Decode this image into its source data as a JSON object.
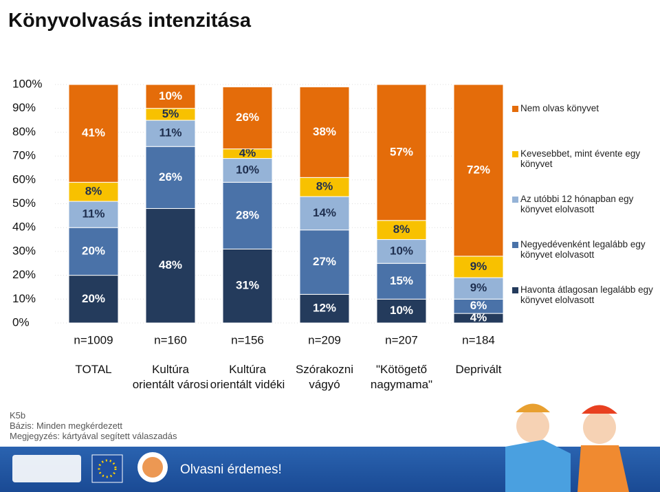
{
  "title": "Könyvolvasás intenzitása",
  "chart_data": {
    "type": "stacked-bar",
    "categories": [
      "TOTAL",
      "Kultúra orientált városi",
      "Kultúra orientált vidéki",
      "Szórakozni vágyó",
      "\"Kötögető nagymama\"",
      "Deprivált"
    ],
    "sample_sizes": [
      "n=1009",
      "n=160",
      "n=156",
      "n=209",
      "n=207",
      "n=184"
    ],
    "series": [
      {
        "name": "Havonta átlagosan legalább egy könyvet elolvasott",
        "color": "#243b5c",
        "values": [
          20,
          48,
          31,
          12,
          10,
          4
        ],
        "value_labels": [
          "20%",
          "48%",
          "31%",
          "12%",
          "10%",
          "4%"
        ]
      },
      {
        "name": "Negyedévenként legalább egy könyvet elolvasott",
        "color": "#4a72a8",
        "values": [
          20,
          26,
          28,
          27,
          15,
          6
        ],
        "value_labels": [
          "20%",
          "26%",
          "28%",
          "27%",
          "15%",
          "6%"
        ]
      },
      {
        "name": "Az utóbbi 12 hónapban egy könyvet elolvasott",
        "color": "#95b3d7",
        "values": [
          11,
          11,
          10,
          14,
          10,
          9
        ],
        "value_labels": [
          "11%",
          "11%",
          "10%",
          "14%",
          "10%",
          "9%"
        ]
      },
      {
        "name": "Kevesebbet, mint évente egy könyvet",
        "color": "#f8c100",
        "values": [
          8,
          5,
          4,
          8,
          8,
          9
        ],
        "value_labels": [
          "8%",
          "5%",
          "4%",
          "8%",
          "8%",
          "9%"
        ]
      },
      {
        "name": "Nem olvas könyvet",
        "color": "#e46c0a",
        "values": [
          41,
          10,
          26,
          38,
          57,
          72
        ],
        "value_labels": [
          "41%",
          "10%",
          "26%",
          "38%",
          "57%",
          "72%"
        ]
      }
    ],
    "ylim": [
      0,
      100
    ],
    "yticks": [
      {
        "value": 0,
        "label": "0%"
      },
      {
        "value": 10,
        "label": "10%"
      },
      {
        "value": 20,
        "label": "20%"
      },
      {
        "value": 30,
        "label": "30%"
      },
      {
        "value": 40,
        "label": "40%"
      },
      {
        "value": 50,
        "label": "50%"
      },
      {
        "value": 60,
        "label": "60%"
      },
      {
        "value": 70,
        "label": "70%"
      },
      {
        "value": 80,
        "label": "80%"
      },
      {
        "value": 90,
        "label": "90%"
      },
      {
        "value": 100,
        "label": "100%"
      }
    ],
    "grid": true,
    "legend": "right"
  },
  "notes": [
    "K5b",
    "Bázis: Minden megkérdezett",
    "Megjegyzés: kártyával segített válaszadás"
  ],
  "footer": {
    "slogan": "Olvasni érdemes!"
  }
}
